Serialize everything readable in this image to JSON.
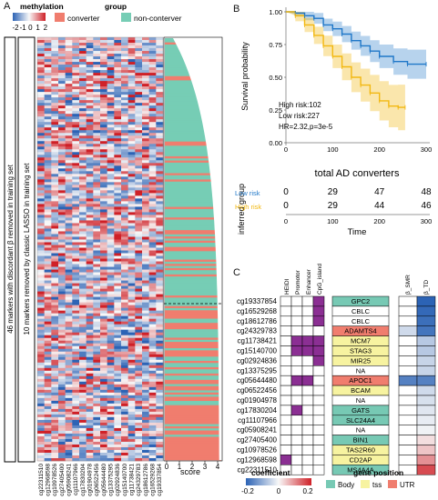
{
  "panels": {
    "a": "A",
    "b": "B",
    "c": "C"
  },
  "panelA": {
    "legend_methylation_title": "methylation",
    "legend_methylation_ticks": [
      "-2",
      "-1",
      "0",
      "1",
      "2"
    ],
    "legend_group_title": "group",
    "legend_group_items": [
      {
        "label": "converter",
        "color": "#f07d6e"
      },
      {
        "label": "non-conterver",
        "color": "#76cdb5"
      }
    ],
    "side_label_outer": "46 markers with discordant β removed in training set",
    "side_label_inner": "10 markers removed by classic LASSO in training set",
    "score_label": "score",
    "score_ticks": [
      "0",
      "1",
      "2",
      "3",
      "4"
    ],
    "markers": [
      "cg22311510",
      "cg12968598",
      "cg10978526",
      "cg27405400",
      "cg05908241",
      "cg11107966",
      "cg17830204",
      "cg01904978",
      "cg06522456",
      "cg05644480",
      "cg13375295",
      "cg02924836",
      "cg15140700",
      "cg11738421",
      "cg24329783",
      "cg18612786",
      "cg16529268",
      "cg19337854"
    ],
    "palette": {
      "low": "#2c63b5",
      "mid": "#f8f8f8",
      "high": "#cf2027"
    }
  },
  "panelB": {
    "ylabel": "Survival probability",
    "xlabel": "Time",
    "y_ticks": [
      "1.00",
      "0.75",
      "0.50",
      "0.25",
      "0.00"
    ],
    "x_ticks": [
      "0",
      "100",
      "200",
      "300"
    ],
    "annotation": [
      "High risk:102",
      "Low risk:227",
      "HR=2.32,p=3e-5"
    ],
    "table_title": "total AD converters",
    "table_ylabel": "inferred group",
    "rows": [
      {
        "label": "Low risk",
        "color": "#1f77c8",
        "values": [
          "0",
          "29",
          "47",
          "48"
        ]
      },
      {
        "label": "High risk",
        "color": "#f2b811",
        "values": [
          "0",
          "29",
          "44",
          "46"
        ]
      }
    ],
    "colors": {
      "low": "#1f77c8",
      "high": "#f2b811"
    }
  },
  "panelC": {
    "col_headers": [
      "HEIDI",
      "Promotor",
      "Enhancer",
      "CpG_island"
    ],
    "beta_headers": [
      "β_SMR",
      "β_TD"
    ],
    "rows": [
      {
        "cg": "cg19337854",
        "gene": "GPC2",
        "pos": "Body",
        "marks": [
          0,
          0,
          0,
          1
        ],
        "smr": 0,
        "td": -0.25
      },
      {
        "cg": "cg16529268",
        "gene": "CBLC",
        "pos": "none",
        "marks": [
          0,
          0,
          0,
          1
        ],
        "smr": 0,
        "td": -0.24
      },
      {
        "cg": "cg18612786",
        "gene": "CBLC",
        "pos": "none",
        "marks": [
          0,
          0,
          0,
          1
        ],
        "smr": 0,
        "td": -0.23
      },
      {
        "cg": "cg24329783",
        "gene": "ADAMTS4",
        "pos": "UTR",
        "marks": [
          0,
          0,
          0,
          0
        ],
        "smr": -0.05,
        "td": -0.22
      },
      {
        "cg": "cg11738421",
        "gene": "MCM7",
        "pos": "tss",
        "marks": [
          0,
          1,
          1,
          1
        ],
        "smr": 0,
        "td": -0.08
      },
      {
        "cg": "cg15140700",
        "gene": "STAG3",
        "pos": "tss",
        "marks": [
          0,
          1,
          1,
          1
        ],
        "smr": 0,
        "td": -0.08
      },
      {
        "cg": "cg02924836",
        "gene": "MIR25",
        "pos": "tss",
        "marks": [
          0,
          0,
          0,
          1
        ],
        "smr": 0,
        "td": -0.06
      },
      {
        "cg": "cg13375295",
        "gene": "NA",
        "pos": "none",
        "marks": [
          0,
          0,
          0,
          0
        ],
        "smr": 0,
        "td": -0.06
      },
      {
        "cg": "cg05644480",
        "gene": "APOC1",
        "pos": "UTR",
        "marks": [
          0,
          1,
          1,
          0
        ],
        "smr": -0.2,
        "td": -0.2
      },
      {
        "cg": "cg06522456",
        "gene": "BCAM",
        "pos": "tss",
        "marks": [
          0,
          0,
          0,
          0
        ],
        "smr": 0,
        "td": -0.05
      },
      {
        "cg": "cg01904978",
        "gene": "NA",
        "pos": "none",
        "marks": [
          0,
          0,
          0,
          0
        ],
        "smr": 0,
        "td": -0.04
      },
      {
        "cg": "cg17830204",
        "gene": "GATS",
        "pos": "Body",
        "marks": [
          0,
          1,
          0,
          0
        ],
        "smr": 0,
        "td": -0.03
      },
      {
        "cg": "cg11107966",
        "gene": "SLC24A4",
        "pos": "Body",
        "marks": [
          0,
          0,
          0,
          0
        ],
        "smr": 0,
        "td": -0.02
      },
      {
        "cg": "cg05908241",
        "gene": "NA",
        "pos": "none",
        "marks": [
          0,
          0,
          0,
          0
        ],
        "smr": 0,
        "td": -0.01
      },
      {
        "cg": "cg27405400",
        "gene": "BIN1",
        "pos": "Body",
        "marks": [
          0,
          0,
          0,
          0
        ],
        "smr": 0,
        "td": 0.03
      },
      {
        "cg": "cg10978526",
        "gene": "TAS2R60",
        "pos": "tss",
        "marks": [
          0,
          0,
          0,
          0
        ],
        "smr": 0,
        "td": 0.06
      },
      {
        "cg": "cg12968598",
        "gene": "CD2AP",
        "pos": "tss",
        "marks": [
          1,
          0,
          0,
          0
        ],
        "smr": 0,
        "td": 0.12
      },
      {
        "cg": "cg22311510",
        "gene": "MS4A4A",
        "pos": "Body",
        "marks": [
          0,
          0,
          0,
          0
        ],
        "smr": 0,
        "td": 0.2
      }
    ],
    "legend_coef_title": "coefficient",
    "legend_coef_ticks": [
      "-0.2",
      "0",
      "0.2"
    ],
    "legend_gene_title": "gene position",
    "legend_gene_items": [
      {
        "label": "Body",
        "color": "#77c9b4"
      },
      {
        "label": "tss",
        "color": "#f7f3a0"
      },
      {
        "label": "UTR",
        "color": "#f07d6e"
      }
    ],
    "mark_color": "#8b2f93"
  }
}
